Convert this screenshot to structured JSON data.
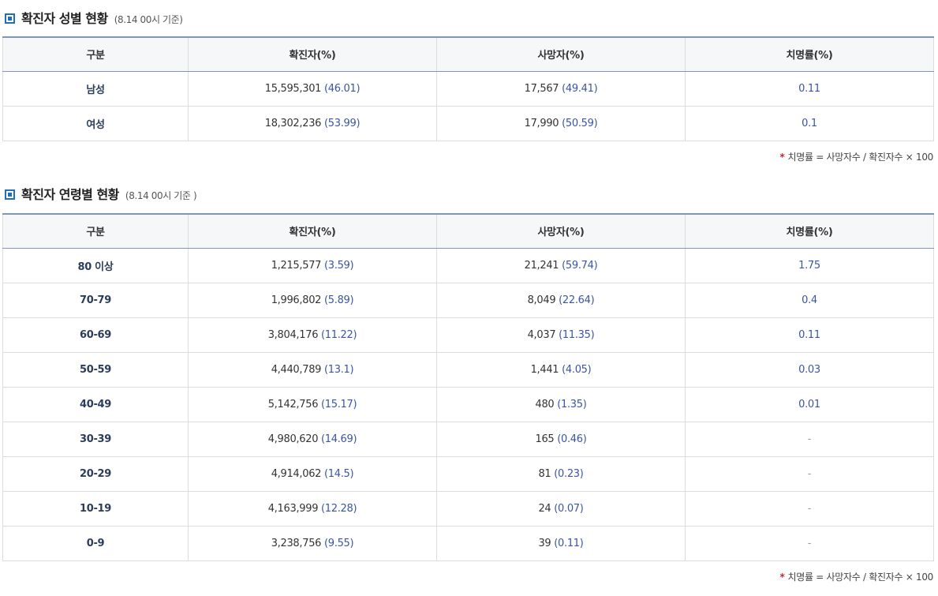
{
  "sex_section": {
    "title": "확진자 성별 현황",
    "subtitle": "(8.14 00시 기준)",
    "headers": [
      "구분",
      "확진자(%)",
      "사망자(%)",
      "치명률(%)"
    ],
    "rows": [
      {
        "category": "남성",
        "cases": "15,595,301",
        "cases_pct": "(46.01)",
        "deaths": "17,567",
        "deaths_pct": "(49.41)",
        "fatality": "0.11"
      },
      {
        "category": "여성",
        "cases": "18,302,236",
        "cases_pct": "(53.99)",
        "deaths": "17,990",
        "deaths_pct": "(50.59)",
        "fatality": "0.1"
      }
    ],
    "note_star": "*",
    "note": "치명률 = 사망자수 / 확진자수 × 100"
  },
  "age_section": {
    "title": "확진자 연령별 현황",
    "subtitle": "(8.14 00시 기준 )",
    "headers": [
      "구분",
      "확진자(%)",
      "사망자(%)",
      "치명률(%)"
    ],
    "rows": [
      {
        "category": "80 이상",
        "cases": "1,215,577",
        "cases_pct": "(3.59)",
        "deaths": "21,241",
        "deaths_pct": "(59.74)",
        "fatality": "1.75"
      },
      {
        "category": "70-79",
        "cases": "1,996,802",
        "cases_pct": "(5.89)",
        "deaths": "8,049",
        "deaths_pct": "(22.64)",
        "fatality": "0.4"
      },
      {
        "category": "60-69",
        "cases": "3,804,176",
        "cases_pct": "(11.22)",
        "deaths": "4,037",
        "deaths_pct": "(11.35)",
        "fatality": "0.11"
      },
      {
        "category": "50-59",
        "cases": "4,440,789",
        "cases_pct": "(13.1)",
        "deaths": "1,441",
        "deaths_pct": "(4.05)",
        "fatality": "0.03"
      },
      {
        "category": "40-49",
        "cases": "5,142,756",
        "cases_pct": "(15.17)",
        "deaths": "480",
        "deaths_pct": "(1.35)",
        "fatality": "0.01"
      },
      {
        "category": "30-39",
        "cases": "4,980,620",
        "cases_pct": "(14.69)",
        "deaths": "165",
        "deaths_pct": "(0.46)",
        "fatality": "-"
      },
      {
        "category": "20-29",
        "cases": "4,914,062",
        "cases_pct": "(14.5)",
        "deaths": "81",
        "deaths_pct": "(0.23)",
        "fatality": "-"
      },
      {
        "category": "10-19",
        "cases": "4,163,999",
        "cases_pct": "(12.28)",
        "deaths": "24",
        "deaths_pct": "(0.07)",
        "fatality": "-"
      },
      {
        "category": "0-9",
        "cases": "3,238,756",
        "cases_pct": "(9.55)",
        "deaths": "39",
        "deaths_pct": "(0.11)",
        "fatality": "-"
      }
    ],
    "note_star": "*",
    "note": "치명률 = 사망자수 / 확진자수 × 100"
  },
  "icon": "square-bullet-icon",
  "colors": {
    "accent": "#1e6fc1",
    "header_border": "#7f96b6",
    "pct_text": "#3a55a2",
    "note_star": "#d0202a"
  }
}
